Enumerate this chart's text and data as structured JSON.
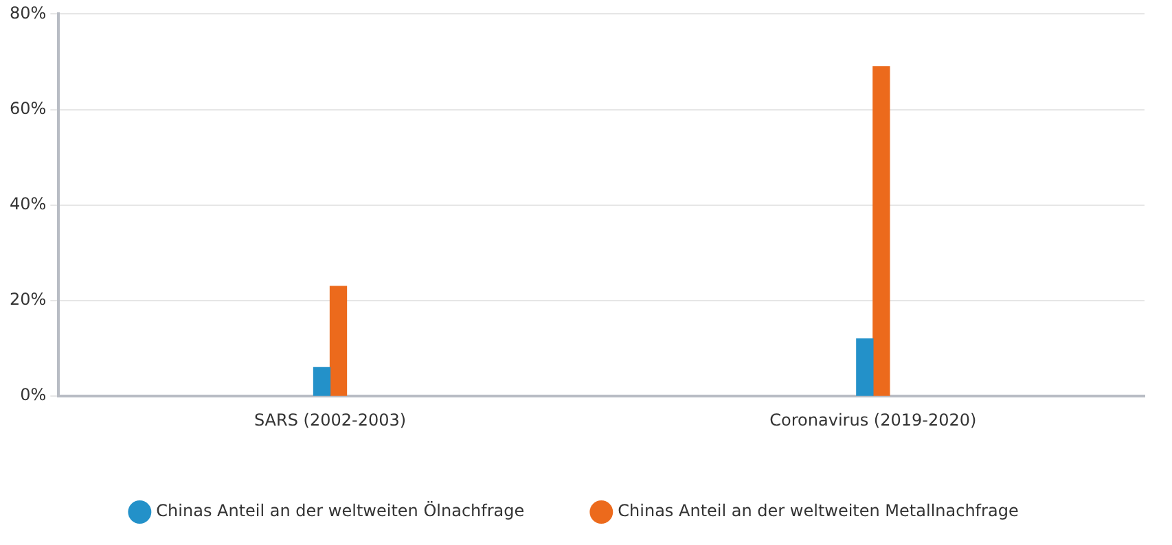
{
  "chart_data": {
    "type": "bar",
    "categories": [
      "SARS (2002-2003)",
      "Coronavirus (2019-2020)"
    ],
    "series": [
      {
        "name": "Chinas Anteil an der weltweiten Ölnachfrage",
        "color": "#2391c9",
        "values": [
          6,
          12
        ]
      },
      {
        "name": "Chinas Anteil an der weltweiten Metallnachfrage",
        "color": "#ec6a1c",
        "values": [
          23,
          69
        ]
      }
    ],
    "ylim": [
      0,
      80
    ],
    "yticks": [
      {
        "value": 0,
        "label": "0%"
      },
      {
        "value": 20,
        "label": "20%"
      },
      {
        "value": 40,
        "label": "40%"
      },
      {
        "value": 60,
        "label": "60%"
      },
      {
        "value": 80,
        "label": "80%"
      }
    ],
    "grid": "y",
    "legend": "bottom"
  }
}
